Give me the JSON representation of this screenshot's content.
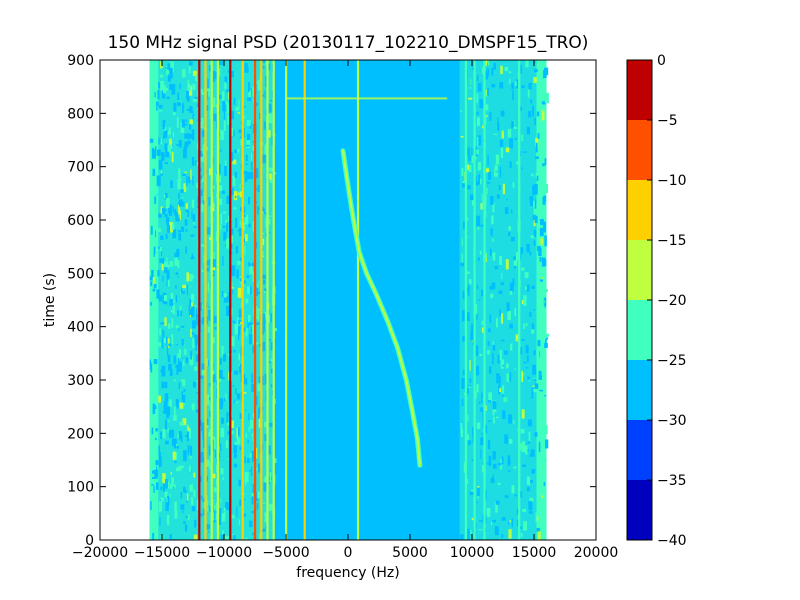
{
  "chart_data": {
    "type": "heatmap",
    "title": "150 MHz signal PSD (20130117_102210_DMSPF15_TRO)",
    "xlabel": "frequency (Hz)",
    "ylabel": "time (s)",
    "xlim": [
      -20000,
      20000
    ],
    "ylim": [
      0,
      900
    ],
    "xticks": [
      -20000,
      -15000,
      -10000,
      -5000,
      0,
      5000,
      10000,
      15000,
      20000
    ],
    "xtick_labels": [
      "−20000",
      "−15000",
      "−10000",
      "−5000",
      "0",
      "5000",
      "10000",
      "15000",
      "20000"
    ],
    "yticks": [
      0,
      100,
      200,
      300,
      400,
      500,
      600,
      700,
      800,
      900
    ],
    "ytick_labels": [
      "0",
      "100",
      "200",
      "300",
      "400",
      "500",
      "600",
      "700",
      "800",
      "900"
    ],
    "data_extent_hz": [
      -16000,
      16000
    ],
    "background_level": -27,
    "noise_band_level": -22,
    "colorbar": {
      "levels": [
        -40,
        -35,
        -30,
        -25,
        -20,
        -15,
        -10,
        -5,
        0
      ],
      "tick_labels": [
        "−40",
        "−35",
        "−30",
        "−25",
        "−20",
        "−15",
        "−10",
        "−5",
        "0"
      ],
      "colors": [
        "#0000bf",
        "#0040ff",
        "#00bfff",
        "#40ffbf",
        "#bfff40",
        "#ffd000",
        "#ff5000",
        "#bf0000"
      ]
    },
    "vertical_lines": [
      {
        "freq": -12000,
        "level": -3
      },
      {
        "freq": -11500,
        "level": -15
      },
      {
        "freq": -11000,
        "level": -18
      },
      {
        "freq": -10500,
        "level": -20
      },
      {
        "freq": -9500,
        "level": -3
      },
      {
        "freq": -8500,
        "level": -12
      },
      {
        "freq": -7500,
        "level": -8
      },
      {
        "freq": -7000,
        "level": -12
      },
      {
        "freq": -6500,
        "level": -16
      },
      {
        "freq": -6000,
        "level": -20
      },
      {
        "freq": -5000,
        "level": -20
      },
      {
        "freq": -3500,
        "level": -13
      },
      {
        "freq": 800,
        "level": -18
      },
      {
        "freq": 9500,
        "level": -22
      },
      {
        "freq": 10200,
        "level": -22
      },
      {
        "freq": 11000,
        "level": -22
      },
      {
        "freq": 13800,
        "level": -22
      }
    ],
    "doppler_trace": [
      {
        "freq": -400,
        "time": 730
      },
      {
        "freq": -100,
        "time": 680
      },
      {
        "freq": 300,
        "time": 620
      },
      {
        "freq": 600,
        "time": 580
      },
      {
        "freq": 900,
        "time": 540
      },
      {
        "freq": 1500,
        "time": 500
      },
      {
        "freq": 2300,
        "time": 460
      },
      {
        "freq": 3200,
        "time": 410
      },
      {
        "freq": 4000,
        "time": 360
      },
      {
        "freq": 4700,
        "time": 300
      },
      {
        "freq": 5200,
        "time": 240
      },
      {
        "freq": 5600,
        "time": 190
      },
      {
        "freq": 5800,
        "time": 140
      }
    ],
    "horizontal_artifact": {
      "time": 828,
      "freq_range": [
        -5000,
        8000
      ],
      "level": -20
    }
  }
}
